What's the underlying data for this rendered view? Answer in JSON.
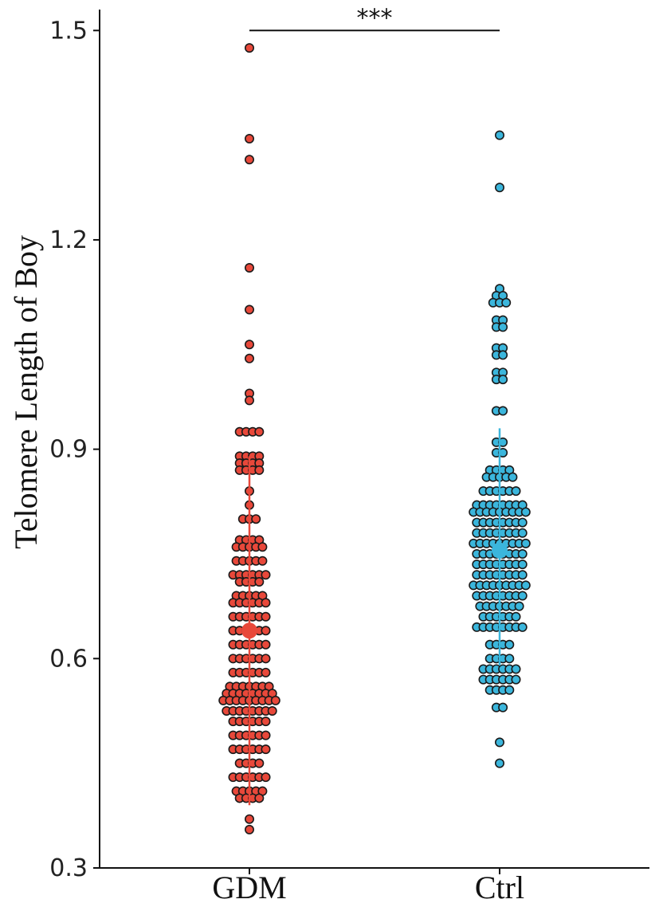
{
  "chart_data": {
    "type": "scatter",
    "subtype": "dot-plot with mean and error bars",
    "ylabel": "Telomere Length of Boy",
    "xlabel": "",
    "ylim": [
      0.3,
      1.53
    ],
    "yticks": [
      0.3,
      0.6,
      0.9,
      1.2,
      1.5
    ],
    "ytick_labels": [
      "0.3",
      "0.6",
      "0.9",
      "1.2",
      "1.5"
    ],
    "categories": [
      "GDM",
      "Ctrl"
    ],
    "significance": {
      "label": "***",
      "between": [
        "GDM",
        "Ctrl"
      ],
      "y": 1.5
    },
    "series": [
      {
        "category": "GDM",
        "color": "#e8483a",
        "mean": 0.64,
        "error_low": 0.39,
        "error_high": 0.89,
        "values": [
          1.475,
          1.345,
          1.315,
          1.16,
          1.1,
          1.05,
          1.03,
          0.98,
          0.97,
          0.925,
          0.925,
          0.925,
          0.925,
          0.89,
          0.89,
          0.89,
          0.89,
          0.88,
          0.88,
          0.88,
          0.88,
          0.87,
          0.87,
          0.87,
          0.87,
          0.84,
          0.82,
          0.8,
          0.8,
          0.8,
          0.77,
          0.77,
          0.77,
          0.77,
          0.76,
          0.76,
          0.76,
          0.76,
          0.76,
          0.74,
          0.74,
          0.74,
          0.74,
          0.74,
          0.72,
          0.72,
          0.72,
          0.72,
          0.72,
          0.72,
          0.71,
          0.71,
          0.71,
          0.71,
          0.69,
          0.69,
          0.69,
          0.69,
          0.69,
          0.68,
          0.68,
          0.68,
          0.68,
          0.68,
          0.68,
          0.66,
          0.66,
          0.66,
          0.66,
          0.66,
          0.66,
          0.64,
          0.64,
          0.64,
          0.64,
          0.64,
          0.64,
          0.62,
          0.62,
          0.62,
          0.62,
          0.62,
          0.62,
          0.6,
          0.6,
          0.6,
          0.6,
          0.6,
          0.6,
          0.58,
          0.58,
          0.58,
          0.58,
          0.58,
          0.58,
          0.56,
          0.56,
          0.56,
          0.56,
          0.56,
          0.56,
          0.56,
          0.55,
          0.55,
          0.55,
          0.55,
          0.55,
          0.55,
          0.55,
          0.55,
          0.54,
          0.54,
          0.54,
          0.54,
          0.54,
          0.54,
          0.54,
          0.54,
          0.54,
          0.525,
          0.525,
          0.525,
          0.525,
          0.525,
          0.525,
          0.525,
          0.525,
          0.51,
          0.51,
          0.51,
          0.51,
          0.51,
          0.51,
          0.49,
          0.49,
          0.49,
          0.49,
          0.49,
          0.49,
          0.47,
          0.47,
          0.47,
          0.47,
          0.47,
          0.47,
          0.45,
          0.45,
          0.45,
          0.45,
          0.43,
          0.43,
          0.43,
          0.43,
          0.43,
          0.43,
          0.41,
          0.41,
          0.41,
          0.41,
          0.41,
          0.4,
          0.4,
          0.4,
          0.4,
          0.37,
          0.355
        ]
      },
      {
        "category": "Ctrl",
        "color": "#3bb6dc",
        "mean": 0.755,
        "error_low": 0.59,
        "error_high": 0.93,
        "values": [
          1.35,
          1.275,
          1.13,
          1.12,
          1.12,
          1.11,
          1.11,
          1.11,
          1.085,
          1.085,
          1.075,
          1.075,
          1.045,
          1.045,
          1.035,
          1.035,
          1.01,
          1.01,
          1.0,
          1.0,
          0.955,
          0.955,
          0.91,
          0.91,
          0.895,
          0.895,
          0.87,
          0.87,
          0.87,
          0.87,
          0.86,
          0.86,
          0.86,
          0.86,
          0.86,
          0.84,
          0.84,
          0.84,
          0.84,
          0.84,
          0.84,
          0.82,
          0.82,
          0.82,
          0.82,
          0.82,
          0.82,
          0.82,
          0.82,
          0.81,
          0.81,
          0.81,
          0.81,
          0.81,
          0.81,
          0.81,
          0.81,
          0.81,
          0.795,
          0.795,
          0.795,
          0.795,
          0.795,
          0.795,
          0.795,
          0.795,
          0.78,
          0.78,
          0.78,
          0.78,
          0.78,
          0.78,
          0.78,
          0.78,
          0.765,
          0.765,
          0.765,
          0.765,
          0.765,
          0.765,
          0.765,
          0.765,
          0.765,
          0.75,
          0.75,
          0.75,
          0.75,
          0.75,
          0.75,
          0.75,
          0.75,
          0.735,
          0.735,
          0.735,
          0.735,
          0.735,
          0.735,
          0.735,
          0.735,
          0.72,
          0.72,
          0.72,
          0.72,
          0.72,
          0.72,
          0.72,
          0.72,
          0.705,
          0.705,
          0.705,
          0.705,
          0.705,
          0.705,
          0.705,
          0.705,
          0.705,
          0.69,
          0.69,
          0.69,
          0.69,
          0.69,
          0.69,
          0.69,
          0.69,
          0.675,
          0.675,
          0.675,
          0.675,
          0.675,
          0.675,
          0.675,
          0.66,
          0.66,
          0.66,
          0.66,
          0.66,
          0.66,
          0.645,
          0.645,
          0.645,
          0.645,
          0.645,
          0.645,
          0.645,
          0.645,
          0.62,
          0.62,
          0.62,
          0.62,
          0.6,
          0.6,
          0.6,
          0.6,
          0.585,
          0.585,
          0.585,
          0.585,
          0.585,
          0.585,
          0.57,
          0.57,
          0.57,
          0.57,
          0.57,
          0.57,
          0.555,
          0.555,
          0.555,
          0.555,
          0.53,
          0.53,
          0.48,
          0.45
        ]
      }
    ]
  }
}
